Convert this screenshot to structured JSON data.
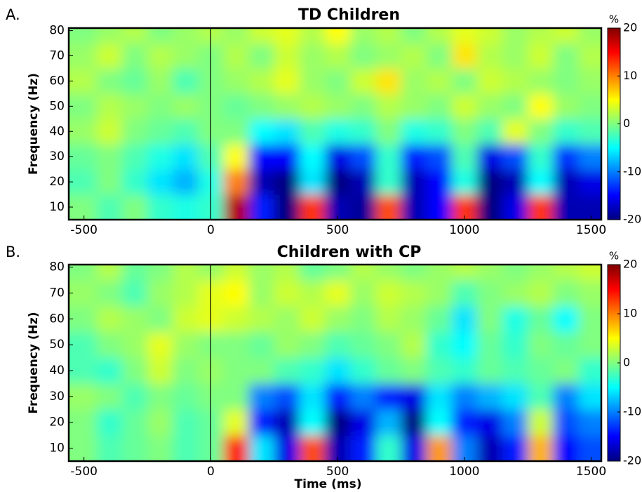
{
  "chart_data": [
    {
      "type": "heatmap",
      "panel_label": "A.",
      "title": "TD Children",
      "ylabel": "Frequency (Hz)",
      "x": [
        -500,
        -400,
        -300,
        -200,
        -100,
        0,
        100,
        200,
        300,
        400,
        500,
        600,
        700,
        800,
        900,
        1000,
        1100,
        1200,
        1300,
        1400,
        1500
      ],
      "y": [
        10,
        20,
        30,
        40,
        50,
        60,
        70,
        80
      ],
      "values": [
        [
          0,
          -2,
          0,
          -3,
          -4,
          -3,
          18,
          -14,
          -20,
          13,
          -18,
          -19,
          12,
          -18,
          -15,
          13,
          -20,
          -16,
          13,
          -18,
          -18
        ],
        [
          -2,
          0,
          -3,
          -6,
          -8,
          -4,
          10,
          -18,
          -20,
          -6,
          -20,
          -18,
          -3,
          -18,
          -15,
          -4,
          -20,
          -18,
          -5,
          -18,
          -16
        ],
        [
          -1,
          0,
          -2,
          -4,
          -6,
          -2,
          5,
          -15,
          -15,
          -5,
          -16,
          -12,
          -3,
          -14,
          -12,
          -2,
          -16,
          -12,
          -3,
          -13,
          -10
        ],
        [
          1,
          3,
          0,
          -1,
          -2,
          0,
          0,
          -5,
          -6,
          -2,
          -4,
          -3,
          0,
          -4,
          -3,
          0,
          -2,
          4,
          0,
          -3,
          -2
        ],
        [
          0,
          2,
          1,
          0,
          1,
          0,
          -1,
          0,
          1,
          2,
          1,
          0,
          2,
          1,
          0,
          3,
          1,
          0,
          5,
          1,
          0
        ],
        [
          2,
          0,
          -1,
          1,
          -2,
          0,
          1,
          2,
          4,
          1,
          0,
          3,
          6,
          1,
          2,
          0,
          3,
          2,
          1,
          0,
          1
        ],
        [
          1,
          3,
          0,
          2,
          1,
          0,
          2,
          0,
          3,
          1,
          2,
          0,
          1,
          2,
          0,
          6,
          2,
          1,
          3,
          0,
          2
        ],
        [
          0,
          1,
          2,
          0,
          1,
          2,
          1,
          3,
          4,
          2,
          5,
          1,
          2,
          0,
          2,
          4,
          3,
          1,
          2,
          3,
          1
        ]
      ],
      "xlim": [
        -560,
        1540
      ],
      "ylim": [
        5,
        81
      ],
      "xticks": [
        -500,
        0,
        500,
        1000,
        1500
      ],
      "yticks": [
        10,
        20,
        30,
        40,
        50,
        60,
        70,
        80
      ],
      "vline_x": 0,
      "colormap": "jet",
      "clim": [
        -20,
        20
      ],
      "cticks": [
        -20,
        -10,
        0,
        10,
        20
      ],
      "colorbar_label": "%"
    },
    {
      "type": "heatmap",
      "panel_label": "B.",
      "title": "Children with CP",
      "ylabel": "Frequency (Hz)",
      "xlabel": "Time (ms)",
      "x": [
        -500,
        -400,
        -300,
        -200,
        -100,
        0,
        100,
        200,
        300,
        400,
        500,
        600,
        700,
        800,
        900,
        1000,
        1100,
        1200,
        1300,
        1400,
        1500
      ],
      "y": [
        10,
        20,
        30,
        40,
        50,
        60,
        70,
        80
      ],
      "values": [
        [
          0,
          -2,
          -1,
          0,
          -2,
          -1,
          14,
          -6,
          -16,
          12,
          -18,
          -14,
          -3,
          -16,
          9,
          -10,
          -18,
          -14,
          8,
          -15,
          -12
        ],
        [
          0,
          -3,
          -1,
          1,
          -2,
          -1,
          4,
          -14,
          -18,
          -5,
          -20,
          -16,
          -8,
          -20,
          -5,
          -14,
          -16,
          -10,
          3,
          -12,
          -10
        ],
        [
          1,
          0,
          -2,
          0,
          -1,
          0,
          0,
          -10,
          -12,
          -6,
          -14,
          -10,
          -14,
          -16,
          -6,
          -10,
          -8,
          -6,
          -2,
          -10,
          -6
        ],
        [
          -2,
          -3,
          0,
          3,
          0,
          1,
          0,
          0,
          -2,
          -3,
          -6,
          -3,
          -1,
          0,
          -2,
          -3,
          -1,
          -2,
          -1,
          0,
          -3
        ],
        [
          -2,
          0,
          1,
          4,
          1,
          0,
          0,
          -1,
          1,
          0,
          -2,
          -1,
          0,
          2,
          -3,
          -5,
          -1,
          -3,
          0,
          -1,
          0
        ],
        [
          0,
          2,
          1,
          0,
          3,
          4,
          3,
          2,
          1,
          3,
          1,
          0,
          2,
          1,
          -1,
          -6,
          0,
          -4,
          -1,
          -5,
          0
        ],
        [
          1,
          0,
          -2,
          1,
          2,
          4,
          5,
          1,
          3,
          2,
          4,
          1,
          3,
          2,
          1,
          -2,
          0,
          1,
          2,
          0,
          1
        ],
        [
          0,
          2,
          -1,
          0,
          2,
          1,
          3,
          1,
          2,
          -1,
          0,
          2,
          1,
          0,
          1,
          2,
          1,
          0,
          1,
          2,
          3
        ]
      ],
      "xlim": [
        -560,
        1540
      ],
      "ylim": [
        5,
        81
      ],
      "xticks": [
        -500,
        0,
        500,
        1000,
        1500
      ],
      "yticks": [
        10,
        20,
        30,
        40,
        50,
        60,
        70,
        80
      ],
      "vline_x": 0,
      "colormap": "jet",
      "clim": [
        -20,
        20
      ],
      "cticks": [
        -20,
        -10,
        0,
        10,
        20
      ],
      "colorbar_label": "%"
    }
  ]
}
